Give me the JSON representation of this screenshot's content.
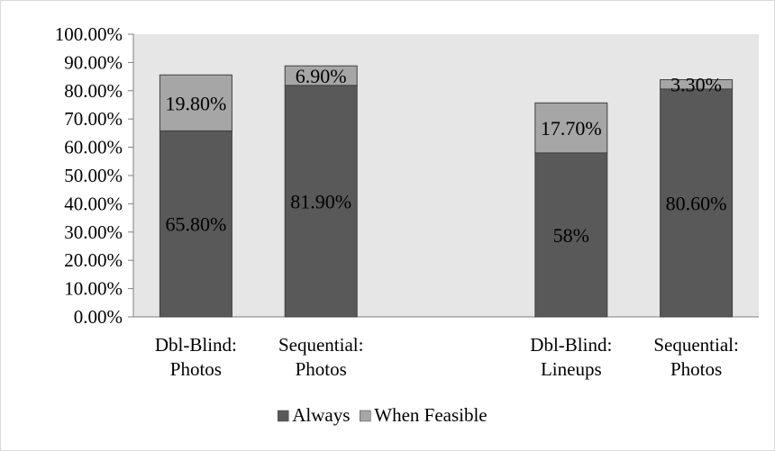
{
  "chart_data": {
    "type": "bar",
    "stacked": true,
    "categories": [
      [
        "Dbl-Blind:",
        "Photos"
      ],
      [
        "Sequential:",
        "Photos"
      ],
      [
        "Dbl-Blind:",
        "Lineups"
      ],
      [
        "Sequential:",
        "Photos"
      ]
    ],
    "category_slots": [
      0,
      1,
      3,
      4
    ],
    "series": [
      {
        "name": "Always",
        "color": "#595959",
        "values": [
          65.8,
          81.9,
          58,
          80.6
        ],
        "labels": [
          "65.80%",
          "81.90%",
          "58%",
          "80.60%"
        ]
      },
      {
        "name": "When Feasible",
        "color": "#a6a6a6",
        "values": [
          19.8,
          6.9,
          17.7,
          3.3
        ],
        "labels": [
          "19.80%",
          "6.90%",
          "17.70%",
          "3.30%"
        ]
      }
    ],
    "ylim": [
      0,
      100
    ],
    "yticks": [
      "0.00%",
      "10.00%",
      "20.00%",
      "30.00%",
      "40.00%",
      "50.00%",
      "60.00%",
      "70.00%",
      "80.00%",
      "90.00%",
      "100.00%"
    ],
    "plot_background": "#e6e6e6",
    "grid": false,
    "legend_position": "bottom",
    "title": "",
    "xlabel": "",
    "ylabel": ""
  }
}
